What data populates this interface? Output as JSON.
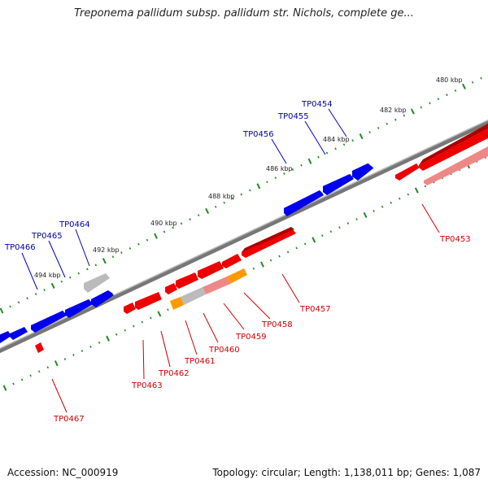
{
  "title": "Treponema pallidum subsp. pallidum str. Nichols, complete ge...",
  "footer": {
    "accession": "Accession: NC_000919",
    "summary": "Topology: circular; Length: 1,138,011 bp; Genes: 1,087"
  },
  "ruler_labels": [
    "480 kbp",
    "482 kbp",
    "484 kbp",
    "486 kbp",
    "488 kbp",
    "490 kbp",
    "492 kbp",
    "494 kbp"
  ],
  "colors": {
    "forward_gene": "#0000ee",
    "reverse_gene": "#ee0000",
    "reverse_gene_light": "#ee8888",
    "orange_gene": "#ff9900",
    "gray_gene": "#bbbbbb",
    "backbone": "#888888",
    "ticks": "#228822"
  },
  "forward_genes": [
    "TP0454",
    "TP0455",
    "TP0456",
    "TP0464",
    "TP0465",
    "TP0466"
  ],
  "reverse_genes": [
    "TP0453",
    "TP0457",
    "TP0458",
    "TP0459",
    "TP0460",
    "TP0461",
    "TP0462",
    "TP0463",
    "TP0467"
  ]
}
